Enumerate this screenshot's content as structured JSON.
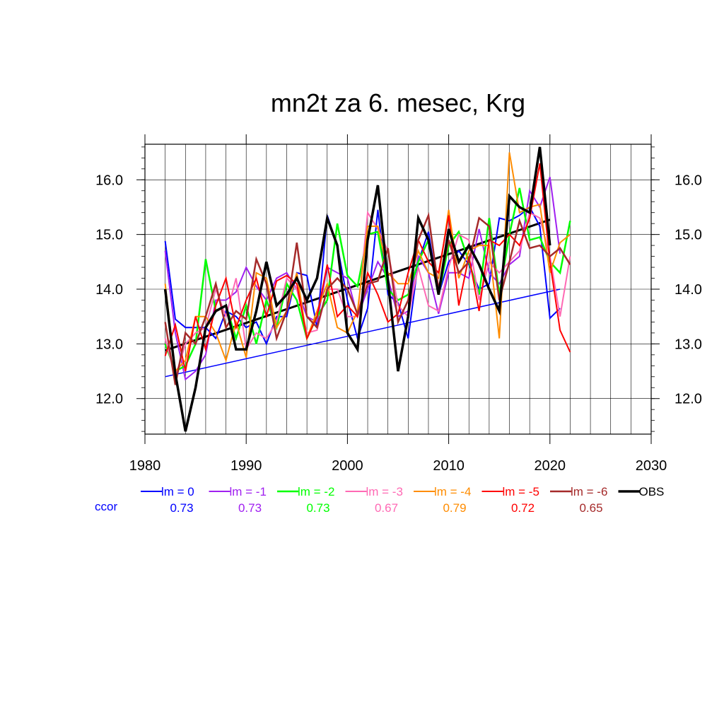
{
  "chart_data": {
    "type": "line",
    "title": "mn2t za 6. mesec, Krg",
    "xlim": [
      1980,
      2030
    ],
    "ylim": [
      11.35,
      16.65
    ],
    "x_ticks": [
      1980,
      1990,
      2000,
      2010,
      2020,
      2030
    ],
    "y_ticks": [
      12.0,
      13.0,
      14.0,
      15.0,
      16.0
    ],
    "y_tick_labels": [
      "12.0",
      "13.0",
      "14.0",
      "15.0",
      "16.0"
    ],
    "grid": true,
    "legend_position": "bottom",
    "x": [
      1982,
      1983,
      1984,
      1985,
      1986,
      1987,
      1988,
      1989,
      1990,
      1991,
      1992,
      1993,
      1994,
      1995,
      1996,
      1997,
      1998,
      1999,
      2000,
      2001,
      2002,
      2003,
      2004,
      2005,
      2006,
      2007,
      2008,
      2009,
      2010,
      2011,
      2012,
      2013,
      2014,
      2015,
      2016,
      2017,
      2018,
      2019,
      2020,
      2021,
      2022
    ],
    "series": [
      {
        "name": "lm = 0",
        "color": "#0000ff",
        "width": 2,
        "values": [
          14.88,
          13.45,
          13.3,
          13.3,
          13.3,
          13.1,
          13.6,
          13.5,
          13.3,
          13.4,
          13.0,
          13.5,
          13.5,
          14.3,
          14.25,
          13.3,
          15.35,
          14.8,
          13.8,
          13.1,
          13.65,
          15.45,
          13.9,
          13.75,
          13.1,
          14.5,
          15.05,
          13.9,
          14.5,
          14.7,
          14.45,
          14.0,
          14.1,
          15.3,
          15.25,
          15.35,
          15.5,
          15.15,
          13.47,
          13.65,
          null
        ]
      },
      {
        "name": "lm = -1",
        "color": "#a020f0",
        "width": 2,
        "values": [
          14.7,
          13.2,
          12.35,
          12.5,
          12.8,
          13.8,
          13.8,
          13.95,
          14.4,
          14.05,
          13.8,
          14.2,
          14.3,
          14.0,
          13.5,
          13.4,
          14.4,
          14.3,
          14.2,
          13.5,
          14.0,
          14.5,
          14.2,
          13.5,
          13.6,
          14.6,
          14.3,
          13.55,
          14.3,
          14.3,
          14.2,
          15.1,
          14.3,
          14.1,
          14.45,
          14.6,
          15.8,
          15.5,
          16.05,
          14.65,
          null
        ]
      },
      {
        "name": "lm = -2",
        "color": "#00ff00",
        "width": 2.5,
        "values": [
          13.0,
          12.5,
          12.6,
          13.0,
          14.55,
          13.6,
          13.7,
          13.1,
          13.7,
          13.0,
          13.8,
          13.3,
          14.1,
          13.8,
          13.1,
          13.5,
          13.8,
          15.2,
          14.25,
          14.05,
          15.0,
          15.05,
          14.0,
          13.8,
          13.9,
          14.5,
          14.9,
          13.9,
          14.8,
          15.05,
          14.5,
          13.9,
          15.3,
          13.9,
          15.0,
          15.85,
          14.9,
          14.95,
          14.5,
          14.3,
          15.25
        ]
      },
      {
        "name": "lm = -3",
        "color": "#ff69b4",
        "width": 2,
        "values": [
          13.1,
          12.4,
          13.0,
          13.2,
          13.3,
          14.0,
          13.5,
          14.2,
          12.9,
          13.2,
          13.1,
          13.4,
          14.2,
          14.0,
          13.2,
          13.25,
          14.0,
          14.0,
          13.5,
          13.5,
          15.4,
          15.1,
          14.7,
          13.7,
          13.5,
          14.4,
          13.7,
          13.6,
          14.4,
          15.0,
          14.9,
          13.8,
          14.5,
          14.3,
          14.5,
          14.7,
          15.4,
          15.3,
          14.6,
          13.5,
          14.6
        ]
      },
      {
        "name": "lm = -4",
        "color": "#ff8c00",
        "width": 2,
        "values": [
          14.1,
          12.5,
          12.7,
          13.5,
          13.5,
          13.2,
          12.7,
          13.4,
          12.75,
          14.3,
          14.2,
          13.3,
          13.6,
          14.3,
          13.1,
          13.6,
          14.1,
          13.3,
          13.2,
          13.6,
          15.15,
          15.15,
          14.3,
          14.1,
          14.1,
          14.7,
          14.3,
          14.2,
          15.45,
          14.2,
          14.7,
          14.8,
          14.8,
          13.1,
          16.5,
          15.4,
          15.5,
          15.55,
          14.3,
          14.85,
          15.0
        ]
      },
      {
        "name": "lm = -5",
        "color": "#ff0000",
        "width": 2,
        "values": [
          12.78,
          13.35,
          12.5,
          13.5,
          12.9,
          13.7,
          14.2,
          13.3,
          13.8,
          14.2,
          13.5,
          14.15,
          14.25,
          14.1,
          13.1,
          13.5,
          14.45,
          13.5,
          13.7,
          13.5,
          14.3,
          13.9,
          13.4,
          13.55,
          14.3,
          14.9,
          14.5,
          14.3,
          15.35,
          13.7,
          14.6,
          13.6,
          14.9,
          14.8,
          15.0,
          14.8,
          15.3,
          16.3,
          14.5,
          13.25,
          12.85
        ]
      },
      {
        "name": "lm = -6",
        "color": "#a52a2a",
        "width": 2.5,
        "values": [
          13.4,
          12.25,
          13.2,
          13.0,
          13.5,
          14.1,
          13.3,
          13.6,
          13.45,
          14.55,
          14.1,
          13.1,
          13.6,
          14.85,
          13.5,
          13.3,
          14.0,
          14.2,
          14.0,
          13.55,
          14.1,
          14.15,
          14.75,
          13.4,
          13.8,
          14.9,
          15.35,
          14.0,
          14.9,
          14.3,
          14.5,
          15.3,
          15.15,
          13.8,
          14.5,
          15.25,
          14.75,
          14.8,
          14.6,
          14.75,
          14.45
        ]
      },
      {
        "name": "OBS",
        "color": "#000000",
        "width": 3.5,
        "values": [
          14.0,
          12.45,
          11.4,
          12.2,
          13.3,
          13.6,
          13.7,
          12.9,
          12.9,
          13.6,
          14.5,
          13.7,
          13.9,
          14.2,
          13.8,
          14.2,
          15.3,
          14.8,
          13.2,
          12.9,
          14.9,
          15.9,
          14.15,
          12.5,
          13.5,
          15.3,
          14.9,
          13.9,
          15.1,
          14.5,
          14.8,
          14.45,
          14.0,
          13.6,
          15.7,
          15.5,
          15.4,
          16.6,
          14.8,
          null,
          null
        ]
      }
    ],
    "trend_lines": [
      {
        "series": "OBS",
        "color": "#000000",
        "width": 3,
        "x": [
          1982,
          2020
        ],
        "y": [
          12.88,
          15.27
        ]
      },
      {
        "series": "lm = 0",
        "color": "#0000ff",
        "width": 1.5,
        "x": [
          1982,
          2021
        ],
        "y": [
          12.4,
          14.0
        ]
      }
    ],
    "ccor_label": "ccor",
    "ccor_values": [
      "0.73",
      "0.73",
      "0.73",
      "0.67",
      "0.79",
      "0.72",
      "0.65"
    ]
  }
}
